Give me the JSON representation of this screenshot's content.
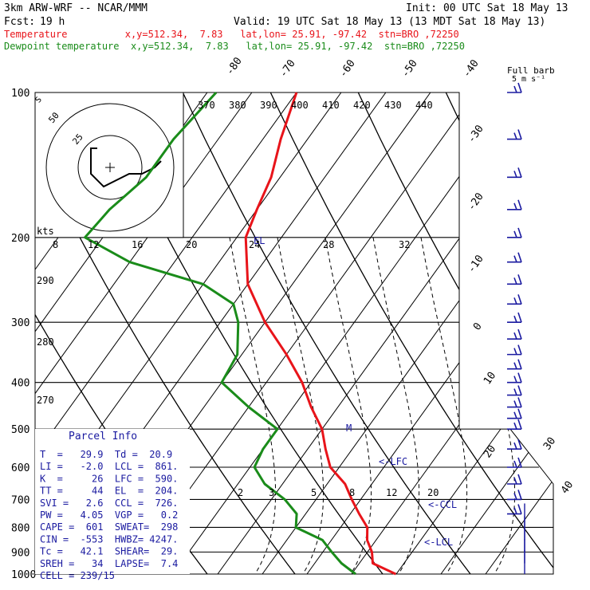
{
  "header": {
    "model": "3km ARW-WRF -- NCAR/MMM",
    "init": "Init: 00 UTC Sat 18 May 13",
    "fcst_label": "Fcst:",
    "fcst_value": "19 h",
    "valid": "Valid: 19 UTC Sat 18 May 13 (13 MDT Sat 18 May 13)",
    "temp_line": "Temperature          x,y=512.34,  7.83   lat,lon= 25.91, -97.42  stn=BRO ,72250",
    "dew_line": "Dewpoint temperature  x,y=512.34,  7.83   lat,lon= 25.91, -97.42  stn=BRO ,72250"
  },
  "colors": {
    "temperature": "#e8141a",
    "dewpoint": "#1a8c1a",
    "barbs": "#1a1aa0",
    "text_blue": "#1a1aa0"
  },
  "barb_legend": {
    "line1": "Full barb",
    "line2": "5 m s⁻¹"
  },
  "hodo": {
    "units": "kts",
    "ring_labels": [
      "50",
      "25"
    ],
    "scale_labels": [
      "8",
      "12",
      "16",
      "20",
      "24",
      "28",
      "32"
    ]
  },
  "theta_labels": [
    "370",
    "380",
    "390",
    "400",
    "410",
    "420",
    "430",
    "440"
  ],
  "left_labels": [
    "290",
    "280",
    "270"
  ],
  "mixing_labels": [
    "2",
    "3",
    "5",
    "8",
    "12",
    "20"
  ],
  "markers": {
    "el": "EL",
    "lfc": "<-LFC",
    "ccl": "<-CCL",
    "lcl": "<-LCL",
    "m": "M"
  },
  "parcel": {
    "title": "Parcel Info",
    "rows": [
      "T  =   29.9  Td =  20.9",
      "LI =   -2.0  LCL =  861.",
      "K  =     26  LFC =  590.",
      "TT =     44  EL  =  204.",
      "SVI =   2.6  CCL =  726.",
      "PW =   4.05  VGP =   0.2",
      "CAPE =  601  SWEAT=  298",
      "CIN =  -553  HWBZ= 4247.",
      "Tc =   42.1  SHEAR=  29.",
      "SREH =   34  LAPSE=  7.4",
      "CELL = 239/15"
    ]
  },
  "chart_data": {
    "type": "line",
    "subtype": "skew-T log-P sounding",
    "xlabel": "",
    "ylabel": "",
    "pressure_levels": [
      100,
      200,
      300,
      400,
      500,
      600,
      700,
      800,
      900,
      1000
    ],
    "isotherm_labels": [
      -80,
      -70,
      -60,
      -50,
      -40,
      -30,
      -20,
      -10,
      0,
      10,
      20,
      30,
      40
    ],
    "series": [
      {
        "name": "Temperature",
        "points": [
          [
            100,
            -70
          ],
          [
            125,
            -66
          ],
          [
            150,
            -62
          ],
          [
            175,
            -60
          ],
          [
            200,
            -58
          ],
          [
            250,
            -50
          ],
          [
            300,
            -40
          ],
          [
            350,
            -30
          ],
          [
            400,
            -22
          ],
          [
            450,
            -16
          ],
          [
            500,
            -10
          ],
          [
            550,
            -6
          ],
          [
            600,
            -2
          ],
          [
            650,
            4
          ],
          [
            700,
            8
          ],
          [
            750,
            12
          ],
          [
            800,
            16
          ],
          [
            850,
            18
          ],
          [
            900,
            21
          ],
          [
            950,
            23
          ],
          [
            1000,
            29.9
          ]
        ]
      },
      {
        "name": "Dewpoint temperature",
        "points": [
          [
            100,
            -88
          ],
          [
            125,
            -90
          ],
          [
            150,
            -90
          ],
          [
            175,
            -93
          ],
          [
            200,
            -94
          ],
          [
            225,
            -80
          ],
          [
            250,
            -60
          ],
          [
            275,
            -50
          ],
          [
            300,
            -46
          ],
          [
            350,
            -41
          ],
          [
            400,
            -40
          ],
          [
            450,
            -30
          ],
          [
            500,
            -20
          ],
          [
            550,
            -20
          ],
          [
            600,
            -19
          ],
          [
            650,
            -14
          ],
          [
            700,
            -7
          ],
          [
            750,
            -2
          ],
          [
            800,
            0
          ],
          [
            850,
            8
          ],
          [
            900,
            12
          ],
          [
            950,
            16
          ],
          [
            1000,
            20.9
          ]
        ]
      }
    ],
    "wind_barbs": {
      "units": "m s-1",
      "levels": [
        100,
        125,
        150,
        175,
        200,
        225,
        250,
        275,
        300,
        325,
        350,
        375,
        400,
        425,
        450,
        475,
        500,
        550,
        600,
        650,
        700,
        750,
        800,
        850,
        900,
        950,
        1000
      ]
    },
    "hodograph": {
      "ring_values_kts": [
        25,
        50
      ],
      "trace": [
        [
          -10,
          15
        ],
        [
          -15,
          15
        ],
        [
          -15,
          -5
        ],
        [
          -5,
          -15
        ],
        [
          5,
          -10
        ],
        [
          15,
          -5
        ],
        [
          25,
          -5
        ],
        [
          35,
          0
        ],
        [
          40,
          5
        ]
      ]
    }
  }
}
